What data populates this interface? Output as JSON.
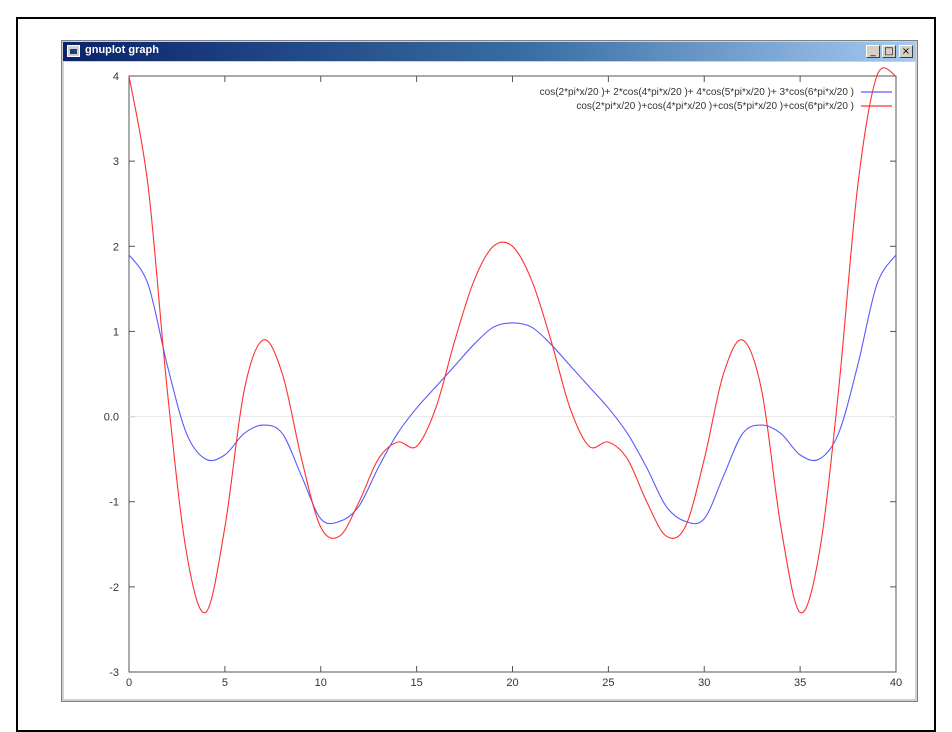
{
  "window": {
    "title": "gnuplot graph",
    "min_label": "_",
    "max_label": "□",
    "close_label": "×"
  },
  "chart_data": {
    "type": "line",
    "x_ticks": [
      "0",
      "5",
      "10",
      "15",
      "20",
      "25",
      "30",
      "35",
      "40"
    ],
    "y_ticks": [
      "4",
      "3",
      "2",
      "1",
      "0.0",
      "-1",
      "-2",
      "-3"
    ],
    "xlim": [
      0,
      40
    ],
    "ylim": [
      -3,
      4
    ],
    "grid": false,
    "zero_line": true,
    "legend_position": "top-right",
    "series": [
      {
        "name": "cos(2*pi*x/20 )+ 2*cos(4*pi*x/20 )+ 4*cos(5*pi*x/20 )+ 3*cos(6*pi*x/20 )",
        "color": "#5a5aff",
        "x": [
          0,
          1,
          2,
          3,
          4,
          5,
          6,
          7,
          8,
          9,
          10,
          11,
          12,
          13,
          14,
          15,
          16,
          17,
          18,
          19,
          20,
          21,
          22,
          23,
          24,
          25,
          26,
          27,
          28,
          29,
          30,
          31,
          32,
          33,
          34,
          35,
          36,
          37,
          38,
          39,
          40
        ],
        "y": [
          1.9,
          1.55,
          0.6,
          -0.2,
          -0.5,
          -0.45,
          -0.2,
          -0.1,
          -0.2,
          -0.7,
          -1.2,
          -1.23,
          -1.05,
          -0.6,
          -0.2,
          0.1,
          0.35,
          0.6,
          0.85,
          1.05,
          1.1,
          1.05,
          0.85,
          0.6,
          0.35,
          0.1,
          -0.2,
          -0.6,
          -1.05,
          -1.23,
          -1.2,
          -0.7,
          -0.2,
          -0.1,
          -0.2,
          -0.45,
          -0.5,
          -0.2,
          0.6,
          1.55,
          1.9
        ]
      },
      {
        "name": "cos(2*pi*x/20 )+cos(4*pi*x/20 )+cos(5*pi*x/20 )+cos(6*pi*x/20 )",
        "color": "#ff3030",
        "x": [
          0,
          1,
          2,
          3,
          4,
          5,
          6,
          7,
          8,
          9,
          10,
          11,
          12,
          13,
          14,
          15,
          16,
          17,
          18,
          19,
          20,
          21,
          22,
          23,
          24,
          25,
          26,
          27,
          28,
          29,
          30,
          31,
          32,
          33,
          34,
          35,
          36,
          37,
          38,
          39,
          40
        ],
        "y": [
          4.0,
          2.7,
          0.3,
          -1.6,
          -2.3,
          -1.3,
          0.3,
          0.9,
          0.5,
          -0.5,
          -1.3,
          -1.4,
          -1.0,
          -0.5,
          -0.3,
          -0.35,
          0.1,
          0.9,
          1.6,
          2.0,
          2.0,
          1.6,
          0.9,
          0.1,
          -0.35,
          -0.3,
          -0.5,
          -1.0,
          -1.4,
          -1.3,
          -0.5,
          0.5,
          0.9,
          0.3,
          -1.3,
          -2.3,
          -1.6,
          0.3,
          2.7,
          4.0,
          4.0
        ]
      }
    ]
  }
}
